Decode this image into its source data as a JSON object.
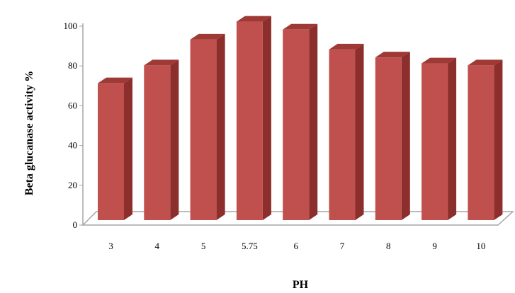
{
  "chart_data": {
    "type": "bar",
    "title": "",
    "xlabel": "PH",
    "ylabel": "Beta glucanase activity %",
    "categories": [
      "3",
      "4",
      "5",
      "5.75",
      "6",
      "7",
      "8",
      "9",
      "10"
    ],
    "values": [
      72,
      81,
      94,
      103,
      99,
      89,
      85,
      82,
      81
    ],
    "ylim": [
      0,
      100
    ],
    "yticks": [
      "0",
      "20",
      "40",
      "60",
      "80",
      "100"
    ],
    "grid": false,
    "legend": "none",
    "colors": {
      "bar_front": "#c0504d",
      "bar_side": "#8c2e2c",
      "bar_top": "#9e3936",
      "floor": "#a6a6a6"
    }
  }
}
